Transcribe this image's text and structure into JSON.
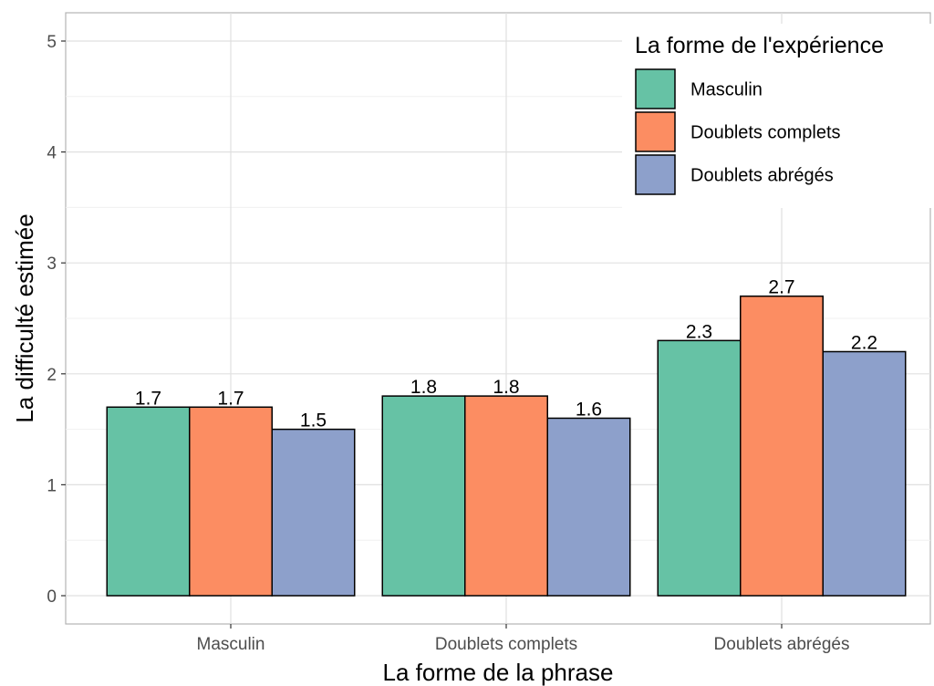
{
  "chart_data": {
    "type": "bar",
    "title": "",
    "xlabel": "La forme de la phrase",
    "ylabel": "La difficulté estimée",
    "categories": [
      "Masculin",
      "Doublets complets",
      "Doublets abrégés"
    ],
    "ylim": [
      0,
      5
    ],
    "yticks": [
      0,
      1,
      2,
      3,
      4,
      5
    ],
    "grid": true,
    "legend": {
      "title": "La forme de l'expérience",
      "placement": "top-right"
    },
    "series": [
      {
        "name": "Masculin",
        "color": "#66c2a5",
        "values": [
          1.7,
          1.8,
          2.3
        ],
        "labels": [
          "1.7",
          "1.8",
          "2.3"
        ]
      },
      {
        "name": "Doublets complets",
        "color": "#fc8d62",
        "values": [
          1.7,
          1.8,
          2.7
        ],
        "labels": [
          "1.7",
          "1.8",
          "2.7"
        ]
      },
      {
        "name": "Doublets abrégés",
        "color": "#8da0cb",
        "values": [
          1.5,
          1.6,
          2.2
        ],
        "labels": [
          "1.5",
          "1.6",
          "2.2"
        ]
      }
    ]
  }
}
